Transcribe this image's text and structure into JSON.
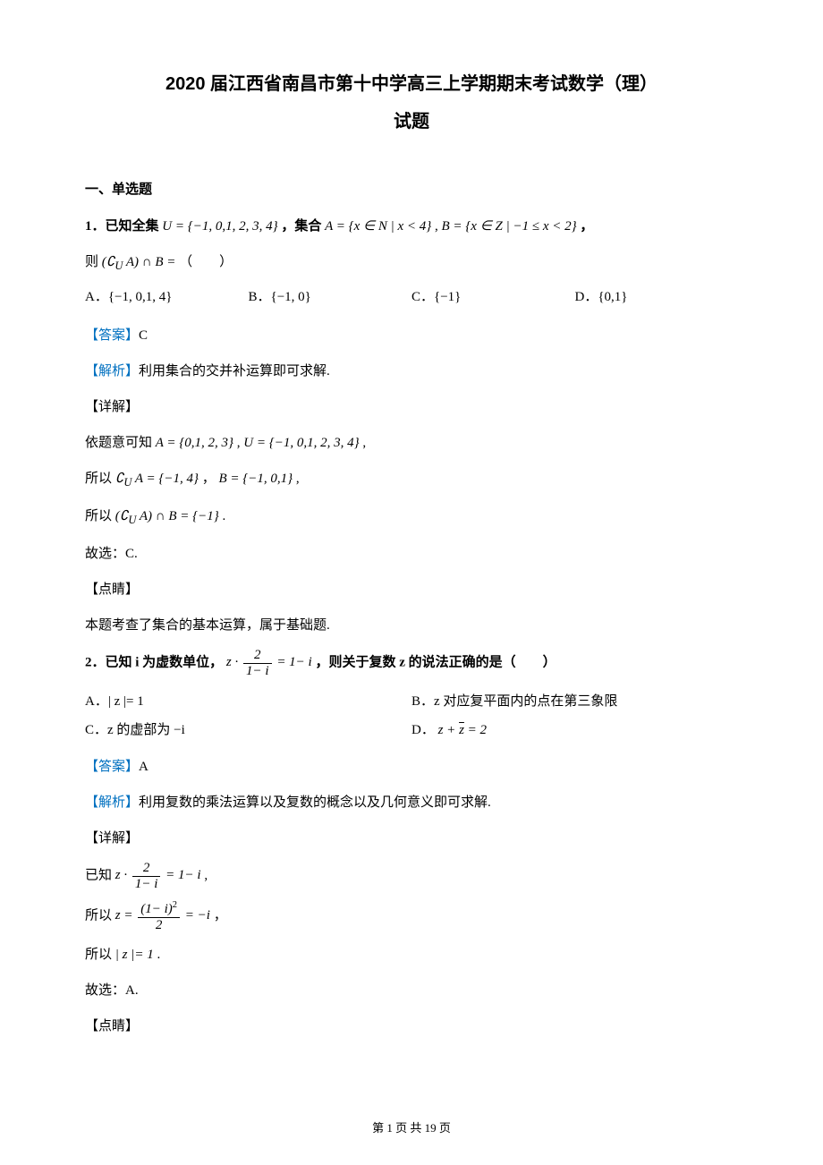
{
  "title": "2020 届江西省南昌市第十中学高三上学期期末考试数学（理）",
  "subtitle": "试题",
  "section1": "一、单选题",
  "q1": {
    "stem_a": "1．已知全集",
    "stem_b": "U = {−1, 0,1, 2, 3, 4}",
    "stem_c": "，集合",
    "stem_d": "A = {x ∈ N | x < 4}",
    "stem_e": ", ",
    "stem_f": "B = {x ∈ Z | −1 ≤ x < 2}",
    "stem_g": "，",
    "stem2_a": "则",
    "stem2_b": "(∁",
    "stem2_b_sub": "U",
    "stem2_c": "A) ∩ B =",
    "stem2_d": "（　　）",
    "opts": {
      "A": "A．{−1, 0,1, 4}",
      "B": "B．{−1, 0}",
      "C": "C．{−1}",
      "D": "D．{0,1}"
    },
    "answer_label": "【答案】",
    "answer": "C",
    "explain_label": "【解析】",
    "explain": "利用集合的交并补运算即可求解.",
    "detail_label": "【详解】",
    "d1_a": "依题意可知",
    "d1_b": "A = {0,1, 2, 3}",
    "d1_c": ", ",
    "d1_d": "U = {−1, 0,1, 2, 3, 4}",
    "d1_e": " ,",
    "d2_a": "所以",
    "d2_b": "∁",
    "d2_b_sub": "U",
    "d2_c": "A = {−1, 4}",
    "d2_d": " ，",
    "d2_e": "B = {−1, 0,1}",
    "d2_f": " ,",
    "d3_a": "所以",
    "d3_b": "(∁",
    "d3_b_sub": "U",
    "d3_c": "A) ∩ B = {−1}",
    "d3_d": " .",
    "choose": "故选：C.",
    "hint_label": "【点睛】",
    "hint": "本题考查了集合的基本运算，属于基础题."
  },
  "q2": {
    "stem_a": "2．已知 i 为虚数单位，",
    "stem_c": "，则关于复数 z 的说法正确的是（　　）",
    "frac_expr_pre": "z ·",
    "frac_num": "2",
    "frac_den": "1− i",
    "frac_expr_post": " = 1− i",
    "opts": {
      "A": "A．| z |= 1",
      "B": "B．z 对应复平面内的点在第三象限",
      "C": "C．z 的虚部为 −i",
      "D_a": "D．",
      "D_b": "z + ",
      "D_c": "z",
      "D_d": " = 2"
    },
    "answer_label": "【答案】",
    "answer": "A",
    "explain_label": "【解析】",
    "explain": "利用复数的乘法运算以及复数的概念以及几何意义即可求解.",
    "detail_label": "【详解】",
    "d1_a": "已知",
    "d1_expr_pre": "z ·",
    "d1_frac_num": "2",
    "d1_frac_den": "1− i",
    "d1_expr_post": " = 1− i",
    "d1_c": " ,",
    "d2_a": "所以",
    "d2_pre": "z = ",
    "d2_num": "(1− i)",
    "d2_num_sup": "2",
    "d2_den": "2",
    "d2_post": " = −i",
    "d2_c": " ，",
    "d3_a": "所以",
    "d3_b": "| z |= 1",
    "d3_c": " .",
    "choose": "故选：A.",
    "hint_label": "【点睛】"
  },
  "footer": "第 1 页 共 19 页"
}
